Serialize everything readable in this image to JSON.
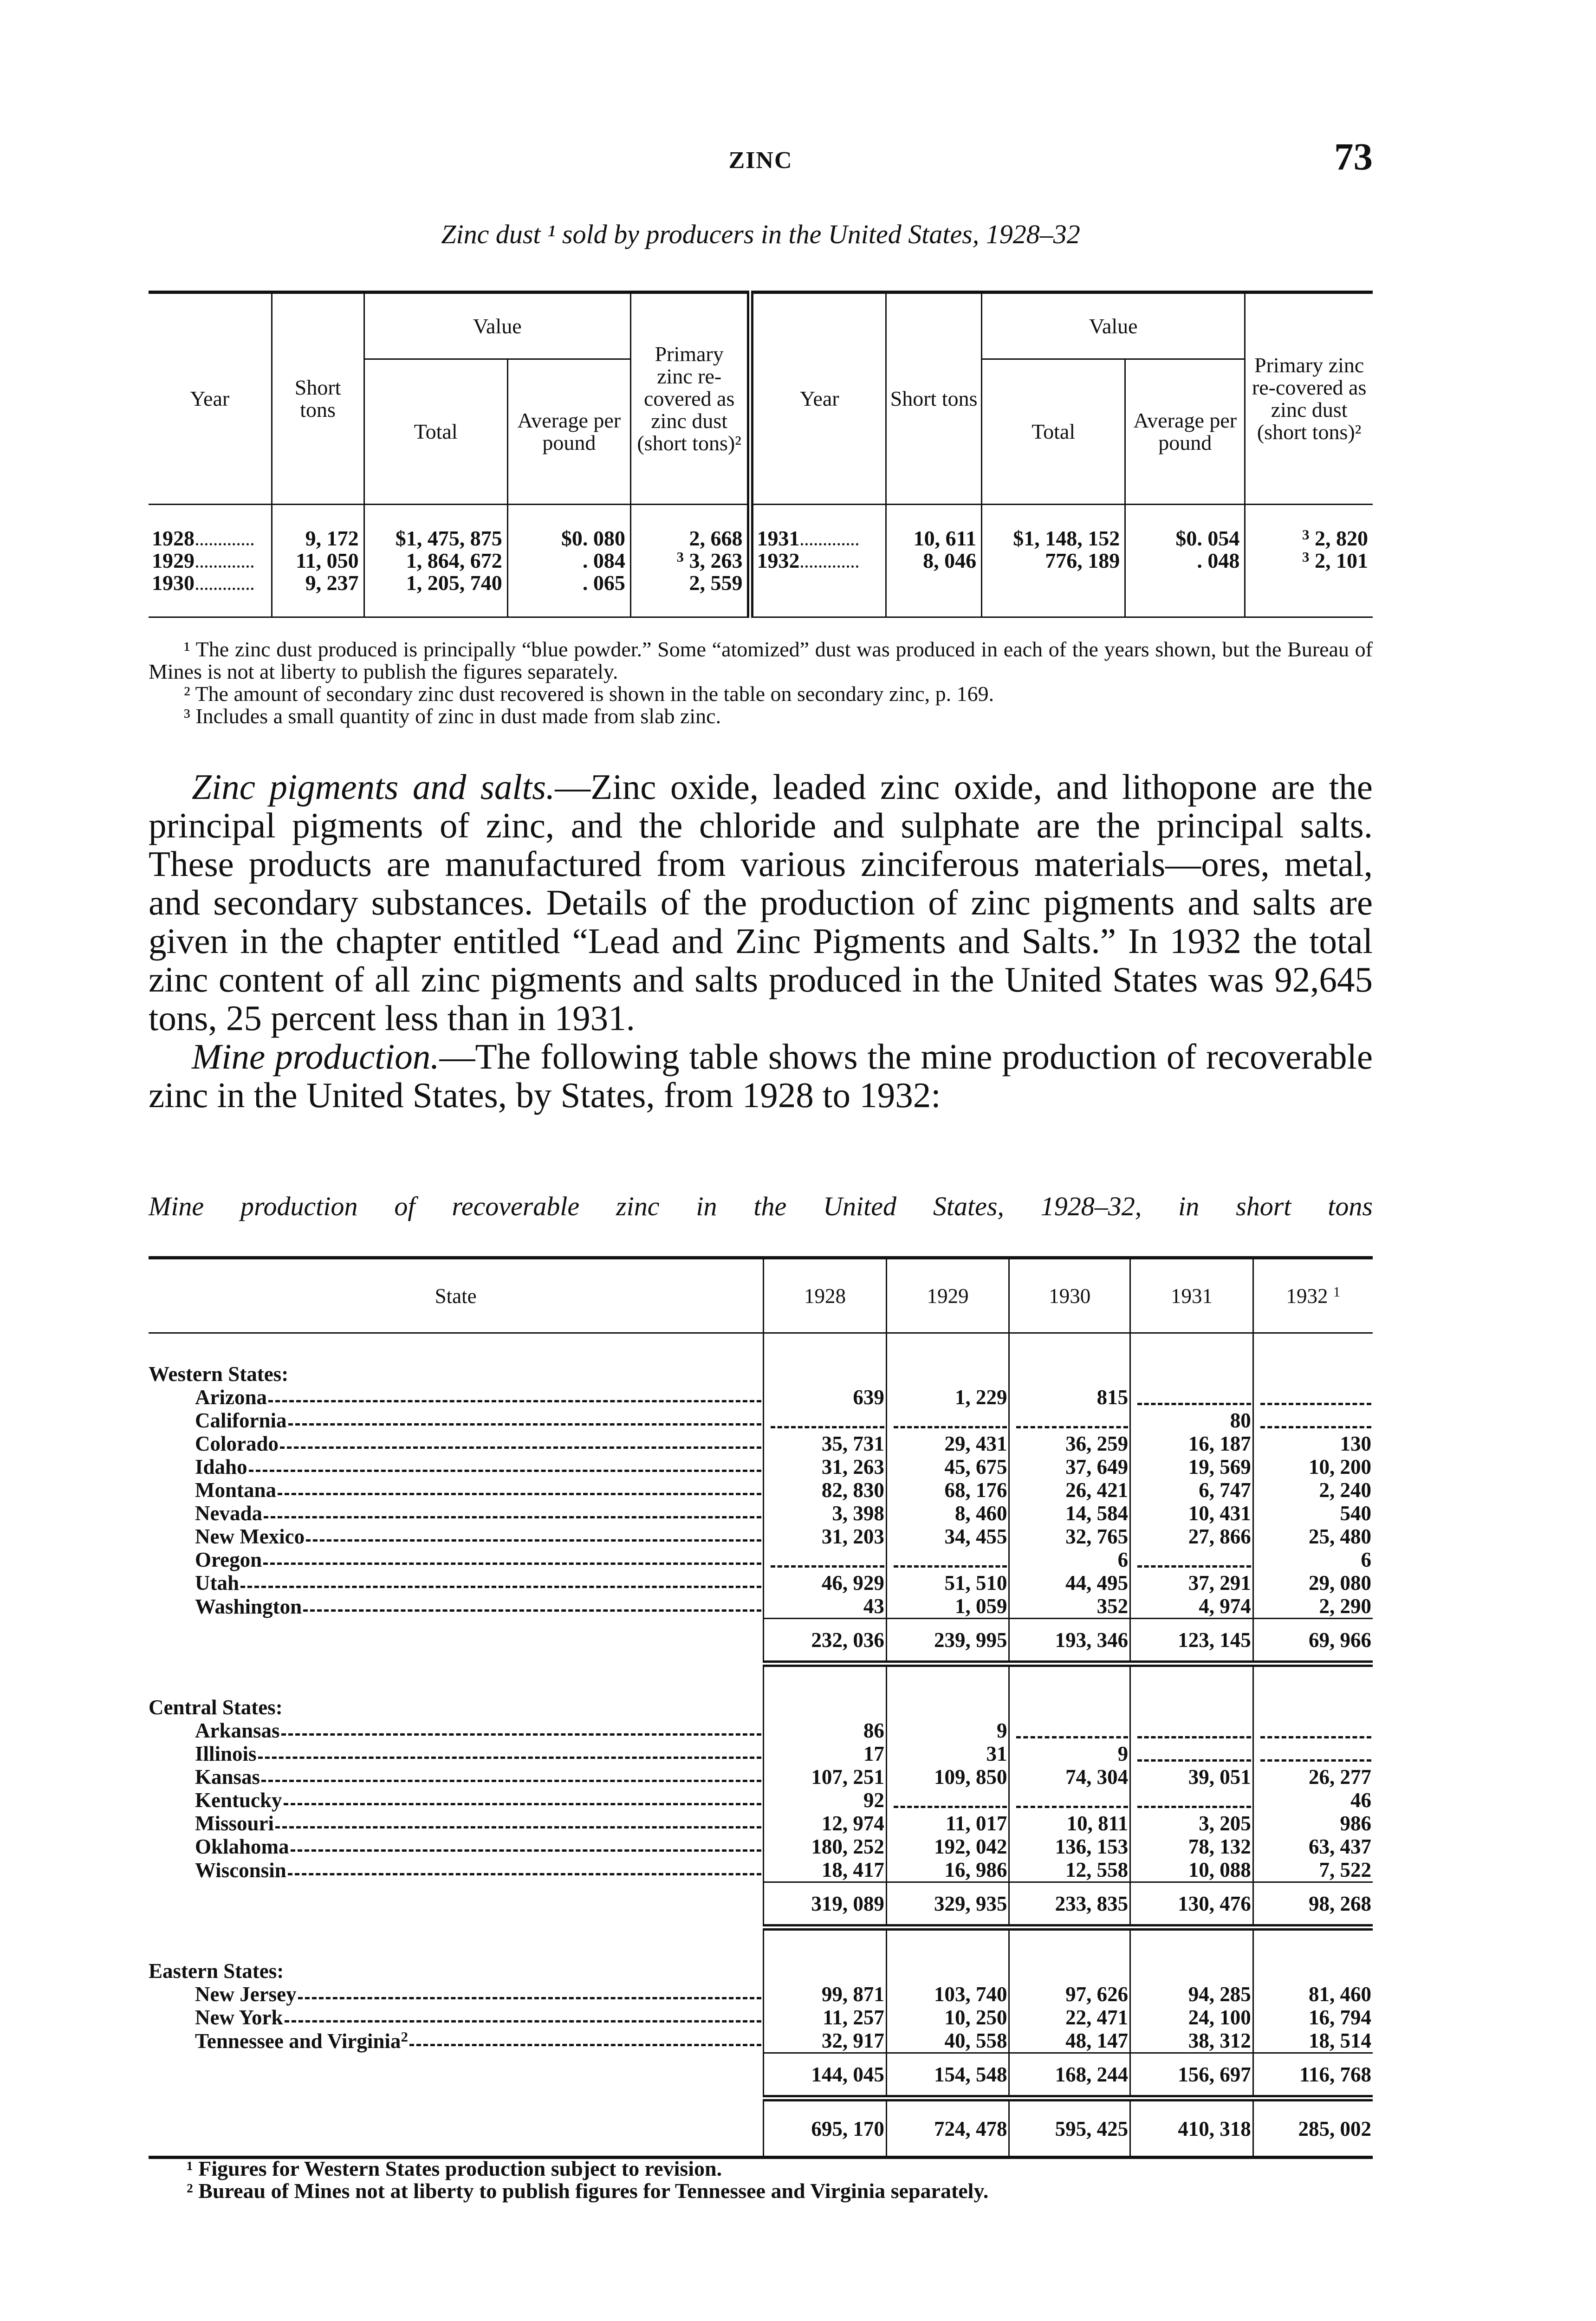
{
  "running_head": "ZINC",
  "page_number": "73",
  "table1": {
    "caption": "Zinc dust ¹ sold by producers in the United States, 1928–32",
    "headers": {
      "year": "Year",
      "short_tons": "Short tons",
      "value": "Value",
      "total": "Total",
      "average": "Average per pound",
      "primary": "Primary zinc re-covered as zinc dust (short tons)²"
    },
    "left_rows": [
      {
        "year": "1928",
        "short_tons": "9, 172",
        "total": "$1, 475, 875",
        "average": "$0. 080",
        "primary": "2, 668",
        "note": ""
      },
      {
        "year": "1929",
        "short_tons": "11, 050",
        "total": "1, 864, 672",
        "average": ". 084",
        "primary": "3, 263",
        "note": "3"
      },
      {
        "year": "1930",
        "short_tons": "9, 237",
        "total": "1, 205, 740",
        "average": ". 065",
        "primary": "2, 559",
        "note": ""
      }
    ],
    "right_rows": [
      {
        "year": "1931",
        "short_tons": "10, 611",
        "total": "$1, 148, 152",
        "average": "$0. 054",
        "primary": "2, 820",
        "note": "3"
      },
      {
        "year": "1932",
        "short_tons": "8, 046",
        "total": "776, 189",
        "average": ". 048",
        "primary": "2, 101",
        "note": "3"
      }
    ],
    "footnotes": [
      "¹ The zinc dust produced is principally “blue powder.” Some “atomized” dust was produced in each of the years shown, but the Bureau of Mines is not at liberty to publish the figures separately.",
      "² The amount of secondary zinc dust recovered is shown in the table on secondary zinc, p. 169.",
      "³ Includes a small quantity of zinc in dust made from slab zinc."
    ]
  },
  "body": {
    "p1_heading": "Zinc pigments and salts.",
    "p1_text": "—Zinc oxide, leaded zinc oxide, and lithopone are the principal pigments of zinc, and the chloride and sulphate are the principal salts. These products are manufactured from various zinciferous materials—ores, metal, and secondary substances. Details of the production of zinc pigments and salts are given in the chapter entitled “Lead and Zinc Pigments and Salts.” In 1932 the total zinc content of all zinc pigments and salts produced in the United States was 92,645 tons, 25 percent less than in 1931.",
    "p2_heading": "Mine production.",
    "p2_text": "—The following table shows the mine production of recoverable zinc in the United States, by States, from 1928 to 1932:"
  },
  "table2": {
    "caption": "Mine production of recoverable zinc in the United States, 1928–32, in short tons",
    "headers": [
      "State",
      "1928",
      "1929",
      "1930",
      "1931",
      "1932"
    ],
    "header_note": "1",
    "groups": [
      {
        "name": "Western States:",
        "rows": [
          {
            "state": "Arizona",
            "values": [
              "639",
              "1, 229",
              "815",
              null,
              null
            ]
          },
          {
            "state": "California",
            "values": [
              null,
              null,
              null,
              "80",
              null
            ]
          },
          {
            "state": "Colorado",
            "values": [
              "35, 731",
              "29, 431",
              "36, 259",
              "16, 187",
              "130"
            ]
          },
          {
            "state": "Idaho",
            "values": [
              "31, 263",
              "45, 675",
              "37, 649",
              "19, 569",
              "10, 200"
            ]
          },
          {
            "state": "Montana",
            "values": [
              "82, 830",
              "68, 176",
              "26, 421",
              "6, 747",
              "2, 240"
            ]
          },
          {
            "state": "Nevada",
            "values": [
              "3, 398",
              "8, 460",
              "14, 584",
              "10, 431",
              "540"
            ]
          },
          {
            "state": "New Mexico",
            "values": [
              "31, 203",
              "34, 455",
              "32, 765",
              "27, 866",
              "25, 480"
            ]
          },
          {
            "state": "Oregon",
            "values": [
              null,
              null,
              "6",
              null,
              "6"
            ]
          },
          {
            "state": "Utah",
            "values": [
              "46, 929",
              "51, 510",
              "44, 495",
              "37, 291",
              "29, 080"
            ]
          },
          {
            "state": "Washington",
            "values": [
              "43",
              "1, 059",
              "352",
              "4, 974",
              "2, 290"
            ]
          }
        ],
        "total": [
          "232, 036",
          "239, 995",
          "193, 346",
          "123, 145",
          "69, 966"
        ]
      },
      {
        "name": "Central States:",
        "rows": [
          {
            "state": "Arkansas",
            "values": [
              "86",
              "9",
              null,
              null,
              null
            ]
          },
          {
            "state": "Illinois",
            "values": [
              "17",
              "31",
              "9",
              null,
              null
            ]
          },
          {
            "state": "Kansas",
            "values": [
              "107, 251",
              "109, 850",
              "74, 304",
              "39, 051",
              "26, 277"
            ]
          },
          {
            "state": "Kentucky",
            "values": [
              "92",
              null,
              null,
              null,
              "46"
            ]
          },
          {
            "state": "Missouri",
            "values": [
              "12, 974",
              "11, 017",
              "10, 811",
              "3, 205",
              "986"
            ]
          },
          {
            "state": "Oklahoma",
            "values": [
              "180, 252",
              "192, 042",
              "136, 153",
              "78, 132",
              "63, 437"
            ]
          },
          {
            "state": "Wisconsin",
            "values": [
              "18, 417",
              "16, 986",
              "12, 558",
              "10, 088",
              "7, 522"
            ]
          }
        ],
        "total": [
          "319, 089",
          "329, 935",
          "233, 835",
          "130, 476",
          "98, 268"
        ]
      },
      {
        "name": "Eastern States:",
        "rows": [
          {
            "state": "New Jersey",
            "values": [
              "99, 871",
              "103, 740",
              "97, 626",
              "94, 285",
              "81, 460"
            ]
          },
          {
            "state": "New York",
            "values": [
              "11, 257",
              "10, 250",
              "22, 471",
              "24, 100",
              "16, 794"
            ]
          },
          {
            "state": "Tennessee and Virginia",
            "note": "2",
            "values": [
              "32, 917",
              "40, 558",
              "48, 147",
              "38, 312",
              "18, 514"
            ]
          }
        ],
        "total": [
          "144, 045",
          "154, 548",
          "168, 244",
          "156, 697",
          "116, 768"
        ]
      }
    ],
    "grand_total": [
      "695, 170",
      "724, 478",
      "595, 425",
      "410, 318",
      "285, 002"
    ],
    "footnotes": [
      "¹ Figures for Western States production subject to revision.",
      "² Bureau of Mines not at liberty to publish figures for Tennessee and Virginia separately."
    ]
  }
}
